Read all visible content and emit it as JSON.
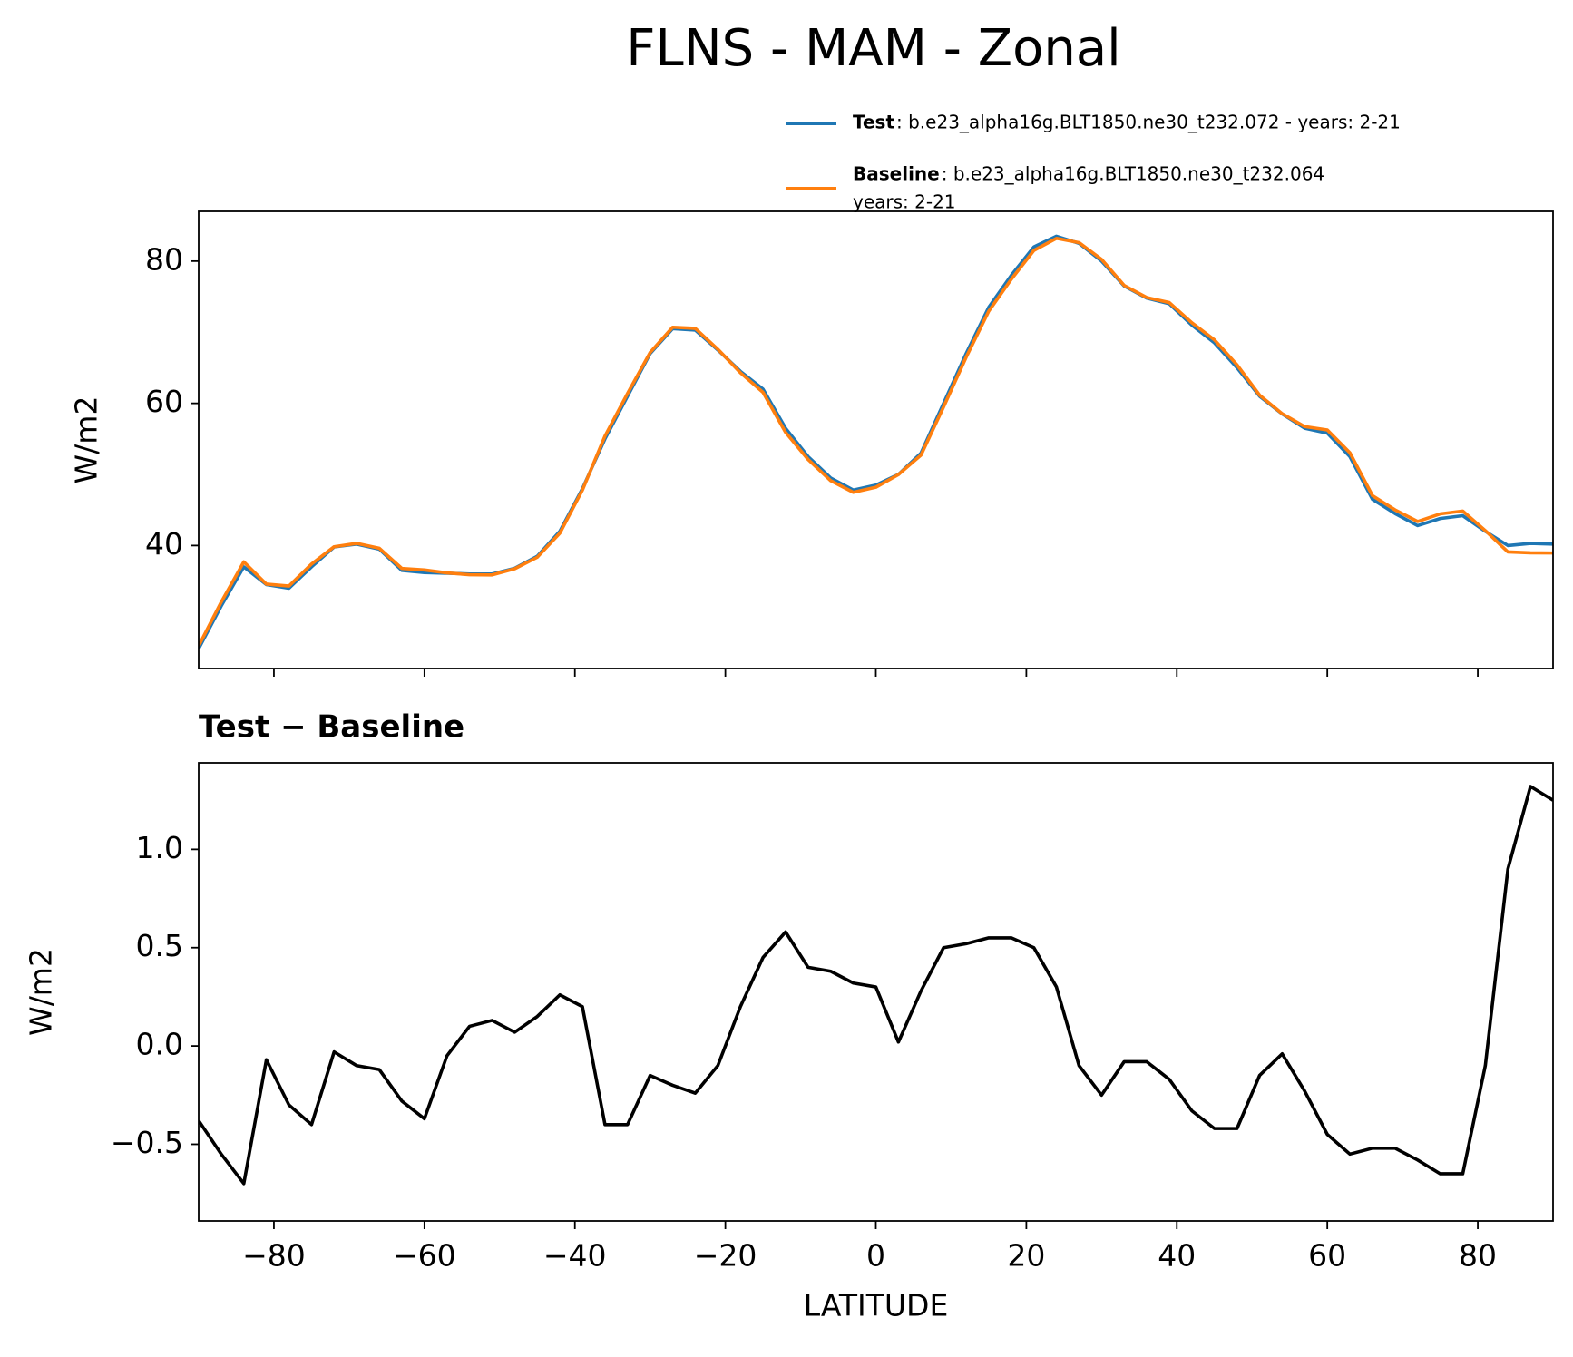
{
  "title": "FLNS - MAM - Zonal",
  "chart_data": [
    {
      "type": "line",
      "ylabel": "W/m2",
      "x": [
        -90,
        -87,
        -84,
        -81,
        -78,
        -75,
        -72,
        -69,
        -66,
        -63,
        -60,
        -57,
        -54,
        -51,
        -48,
        -45,
        -42,
        -39,
        -36,
        -33,
        -30,
        -27,
        -24,
        -21,
        -18,
        -15,
        -12,
        -9,
        -6,
        -3,
        0,
        3,
        6,
        9,
        12,
        15,
        18,
        21,
        24,
        27,
        30,
        33,
        36,
        39,
        42,
        45,
        48,
        51,
        54,
        57,
        60,
        63,
        66,
        69,
        72,
        75,
        78,
        81,
        84,
        87,
        90
      ],
      "series": [
        {
          "name": "Test",
          "label": [
            ": b.e23_alpha16g.BLT1850.ne30_t232.072 - years: 2-21"
          ],
          "color": "#1f77b4",
          "values": [
            25.5,
            31.5,
            37,
            34.5,
            34,
            37,
            39.8,
            40.2,
            39.5,
            36.5,
            36.2,
            36.1,
            36,
            36,
            36.8,
            38.5,
            42,
            48,
            55,
            61,
            67,
            70.5,
            70.3,
            67.5,
            64.5,
            62,
            56.5,
            52.5,
            49.5,
            47.8,
            48.5,
            50,
            53,
            60,
            67,
            73.5,
            78,
            82,
            83.5,
            82.5,
            80,
            76.5,
            74.8,
            74,
            71,
            68.5,
            65,
            61,
            58.5,
            56.5,
            55.8,
            52.5,
            46.5,
            44.5,
            42.8,
            43.8,
            44.2,
            42,
            40,
            40.3,
            40.2
          ]
        },
        {
          "name": "Baseline",
          "label": [
            ": b.e23_alpha16g.BLT1850.ne30_t232.064",
            "years: 2-21"
          ],
          "color": "#ff7f0e",
          "values": [
            25.88,
            32.05,
            37.7,
            34.57,
            34.3,
            37.4,
            39.83,
            40.3,
            39.62,
            36.78,
            36.57,
            36.15,
            35.9,
            35.87,
            36.73,
            38.35,
            41.74,
            47.8,
            55.4,
            61.4,
            67.15,
            70.7,
            70.54,
            67.6,
            64.3,
            61.55,
            55.92,
            52.1,
            49.12,
            47.48,
            48.2,
            49.98,
            52.72,
            59.5,
            66.48,
            72.95,
            77.45,
            81.5,
            83.2,
            82.6,
            80.25,
            76.58,
            74.88,
            74.17,
            71.33,
            68.92,
            65.42,
            61.15,
            58.54,
            56.73,
            56.25,
            53.05,
            47.02,
            45.02,
            43.38,
            44.45,
            44.85,
            42.1,
            39.1,
            38.98,
            38.95
          ]
        }
      ],
      "xlim": [
        -90,
        90
      ],
      "xticks": [
        -80,
        -60,
        -40,
        -20,
        0,
        20,
        40,
        60,
        80
      ],
      "ylim": [
        22.7,
        87
      ],
      "yticks": [
        40,
        60,
        80
      ]
    },
    {
      "type": "line",
      "title": "Test − Baseline",
      "ylabel": "W/m2",
      "xlabel": "LATITUDE",
      "x": [
        -90,
        -87,
        -84,
        -81,
        -78,
        -75,
        -72,
        -69,
        -66,
        -63,
        -60,
        -57,
        -54,
        -51,
        -48,
        -45,
        -42,
        -39,
        -36,
        -33,
        -30,
        -27,
        -24,
        -21,
        -18,
        -15,
        -12,
        -9,
        -6,
        -3,
        0,
        3,
        6,
        9,
        12,
        15,
        18,
        21,
        24,
        27,
        30,
        33,
        36,
        39,
        42,
        45,
        48,
        51,
        54,
        57,
        60,
        63,
        66,
        69,
        72,
        75,
        78,
        81,
        84,
        87,
        90
      ],
      "series": [
        {
          "color": "#000000",
          "values": [
            -0.38,
            -0.55,
            -0.7,
            -0.07,
            -0.3,
            -0.4,
            -0.03,
            -0.1,
            -0.12,
            -0.28,
            -0.37,
            -0.05,
            0.1,
            0.13,
            0.07,
            0.15,
            0.26,
            0.2,
            -0.4,
            -0.4,
            -0.15,
            -0.2,
            -0.24,
            -0.1,
            0.2,
            0.45,
            0.58,
            0.4,
            0.38,
            0.32,
            0.3,
            0.02,
            0.28,
            0.5,
            0.52,
            0.55,
            0.55,
            0.5,
            0.3,
            -0.1,
            -0.25,
            -0.08,
            -0.08,
            -0.17,
            -0.33,
            -0.42,
            -0.42,
            -0.15,
            -0.04,
            -0.23,
            -0.45,
            -0.55,
            -0.52,
            -0.52,
            -0.58,
            -0.65,
            -0.65,
            -0.1,
            0.9,
            1.32,
            1.25
          ]
        }
      ],
      "xlim": [
        -90,
        90
      ],
      "xticks": [
        {
          "value": -80,
          "label": "−80"
        },
        {
          "value": -60,
          "label": "−60"
        },
        {
          "value": -40,
          "label": "−40"
        },
        {
          "value": -20,
          "label": "−20"
        },
        0,
        20,
        40,
        60,
        80
      ],
      "ylim": [
        -0.89,
        1.44
      ],
      "yticks": [
        {
          "value": -0.5,
          "label": "−0.5"
        },
        {
          "value": 0,
          "label": "0.0"
        },
        0.5,
        {
          "value": 1,
          "label": "1.0"
        }
      ]
    }
  ]
}
